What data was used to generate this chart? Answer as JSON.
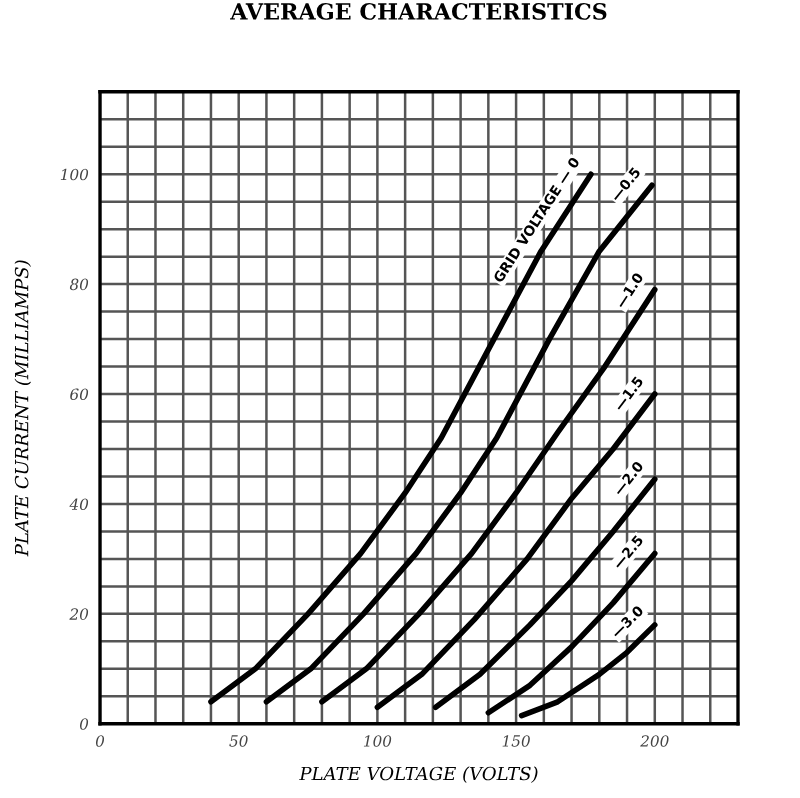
{
  "chart_data": {
    "type": "line",
    "title": "AVERAGE CHARACTERISTICS",
    "xlabel": "PLATE VOLTAGE (VOLTS)",
    "ylabel": "PLATE CURRENT (MILLIAMPS)",
    "xlim": [
      0,
      230
    ],
    "ylim": [
      0,
      115
    ],
    "xticks": [
      0,
      {
        "value": 10,
        "label": null
      },
      {
        "value": 20,
        "label": null
      },
      {
        "value": 30,
        "label": null
      },
      {
        "value": 40,
        "label": null
      },
      50,
      {
        "value": 60,
        "label": null
      },
      {
        "value": 70,
        "label": null
      },
      {
        "value": 80,
        "label": null
      },
      {
        "value": 90,
        "label": null
      },
      100,
      {
        "value": 110,
        "label": null
      },
      {
        "value": 120,
        "label": null
      },
      {
        "value": 130,
        "label": null
      },
      {
        "value": 140,
        "label": null
      },
      150,
      {
        "value": 160,
        "label": null
      },
      {
        "value": 170,
        "label": null
      },
      {
        "value": 180,
        "label": null
      },
      {
        "value": 190,
        "label": null
      },
      200,
      {
        "value": 210,
        "label": null
      },
      {
        "value": 220,
        "label": null
      }
    ],
    "yticks": [
      0,
      {
        "value": 5,
        "label": null
      },
      {
        "value": 10,
        "label": null
      },
      {
        "value": 15,
        "label": null
      },
      20,
      {
        "value": 25,
        "label": null
      },
      {
        "value": 30,
        "label": null
      },
      {
        "value": 35,
        "label": null
      },
      40,
      {
        "value": 45,
        "label": null
      },
      {
        "value": 50,
        "label": null
      },
      {
        "value": 55,
        "label": null
      },
      60,
      {
        "value": 65,
        "label": null
      },
      {
        "value": 70,
        "label": null
      },
      {
        "value": 75,
        "label": null
      },
      80,
      {
        "value": 85,
        "label": null
      },
      {
        "value": 90,
        "label": null
      },
      {
        "value": 95,
        "label": null
      },
      100,
      {
        "value": 105,
        "label": null
      },
      {
        "value": 110,
        "label": null
      }
    ],
    "grid": true,
    "marker": "none",
    "line_style": "solid",
    "series": [
      {
        "name": "GRID VOLTAGE — 0",
        "color": "#000000",
        "x": [
          40,
          56,
          75,
          94,
          110,
          123,
          142,
          159,
          177
        ],
        "values": [
          4,
          10,
          20,
          31,
          42,
          52,
          70,
          86,
          100
        ]
      },
      {
        "name": "—0.5",
        "color": "#000000",
        "x": [
          60,
          76,
          95,
          114,
          130,
          143,
          162,
          180,
          199
        ],
        "values": [
          4,
          10,
          20,
          31,
          42,
          52,
          70,
          86,
          98
        ]
      },
      {
        "name": "—1.0",
        "color": "#000000",
        "x": [
          80,
          96,
          115,
          134,
          150,
          165,
          182,
          200
        ],
        "values": [
          4,
          10,
          20,
          31,
          42,
          53,
          65,
          79
        ]
      },
      {
        "name": "—1.5",
        "color": "#000000",
        "x": [
          100,
          116,
          135,
          154,
          170,
          185,
          200
        ],
        "values": [
          3,
          9,
          19,
          30,
          41,
          50,
          60
        ]
      },
      {
        "name": "—2.0",
        "color": "#000000",
        "x": [
          121,
          137,
          155,
          170,
          185,
          200
        ],
        "values": [
          3,
          9,
          18,
          26,
          35,
          44.5
        ]
      },
      {
        "name": "—2.5",
        "color": "#000000",
        "x": [
          140,
          155,
          170,
          185,
          200
        ],
        "values": [
          2,
          7,
          14,
          22,
          31
        ]
      },
      {
        "name": "—3.0",
        "color": "#000000",
        "x": [
          152,
          165,
          180,
          190,
          200
        ],
        "values": [
          1.5,
          4,
          9,
          13,
          18
        ]
      }
    ]
  }
}
